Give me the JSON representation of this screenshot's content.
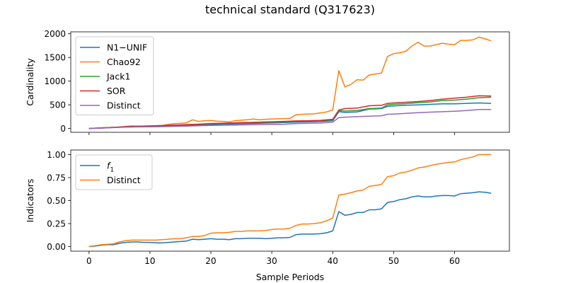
{
  "figure": {
    "title": "technical standard (Q317623)"
  },
  "chart_data": [
    {
      "type": "line",
      "ylabel": "Cardinality",
      "xlabel": "",
      "xlim": [
        -3,
        69
      ],
      "ylim": [
        -80,
        2040
      ],
      "xticks": [
        0,
        10,
        20,
        30,
        40,
        50,
        60
      ],
      "yticks": [
        0,
        500,
        1000,
        1500,
        2000
      ],
      "legend": "upper-left",
      "series": [
        {
          "name": "N1−UNIF",
          "color": "#1f77b4",
          "x": [
            0,
            2,
            4,
            6,
            8,
            10,
            12,
            14,
            16,
            18,
            20,
            22,
            24,
            26,
            28,
            30,
            32,
            34,
            36,
            38,
            40,
            41,
            42,
            44,
            46,
            48,
            49,
            50,
            52,
            54,
            56,
            58,
            60,
            62,
            64,
            66
          ],
          "y": [
            0,
            10,
            22,
            35,
            42,
            48,
            52,
            60,
            68,
            76,
            85,
            92,
            98,
            105,
            110,
            118,
            125,
            135,
            140,
            148,
            165,
            355,
            340,
            350,
            410,
            420,
            470,
            475,
            490,
            500,
            510,
            520,
            520,
            530,
            540,
            530
          ]
        },
        {
          "name": "Chao92",
          "color": "#ff7f0e",
          "x": [
            0,
            1,
            2,
            3,
            4,
            5,
            6,
            7,
            8,
            9,
            10,
            11,
            12,
            13,
            14,
            15,
            16,
            17,
            18,
            19,
            20,
            21,
            22,
            23,
            24,
            25,
            26,
            27,
            28,
            29,
            30,
            31,
            32,
            33,
            34,
            35,
            36,
            37,
            38,
            39,
            40,
            41,
            42,
            43,
            44,
            45,
            46,
            47,
            48,
            49,
            50,
            51,
            52,
            53,
            54,
            55,
            56,
            57,
            58,
            59,
            60,
            61,
            62,
            63,
            64,
            65,
            66
          ],
          "y": [
            0,
            5,
            15,
            20,
            25,
            30,
            45,
            55,
            50,
            50,
            55,
            60,
            65,
            85,
            105,
            110,
            120,
            185,
            150,
            165,
            170,
            155,
            150,
            140,
            165,
            175,
            185,
            200,
            185,
            195,
            200,
            205,
            210,
            215,
            290,
            300,
            305,
            310,
            330,
            350,
            390,
            1220,
            880,
            930,
            1030,
            1020,
            1130,
            1150,
            1170,
            1520,
            1580,
            1600,
            1630,
            1740,
            1820,
            1740,
            1740,
            1770,
            1800,
            1780,
            1770,
            1860,
            1860,
            1870,
            1930,
            1890,
            1850
          ]
        },
        {
          "name": "Jack1",
          "color": "#2ca02c",
          "x": [
            0,
            2,
            4,
            6,
            8,
            10,
            12,
            14,
            16,
            18,
            20,
            22,
            24,
            26,
            28,
            30,
            32,
            34,
            36,
            38,
            40,
            41,
            42,
            44,
            46,
            48,
            49,
            50,
            52,
            54,
            56,
            58,
            60,
            62,
            64,
            66
          ],
          "y": [
            0,
            12,
            25,
            38,
            45,
            52,
            58,
            68,
            78,
            88,
            100,
            108,
            115,
            122,
            128,
            135,
            142,
            152,
            158,
            165,
            185,
            380,
            370,
            380,
            420,
            430,
            500,
            510,
            525,
            545,
            560,
            590,
            600,
            620,
            650,
            660
          ]
        },
        {
          "name": "SOR",
          "color": "#d62728",
          "x": [
            0,
            2,
            4,
            6,
            8,
            10,
            12,
            14,
            16,
            18,
            20,
            22,
            24,
            26,
            28,
            30,
            32,
            34,
            36,
            38,
            40,
            41,
            42,
            44,
            46,
            48,
            49,
            50,
            52,
            54,
            56,
            58,
            60,
            62,
            64,
            66
          ],
          "y": [
            0,
            12,
            25,
            40,
            48,
            55,
            62,
            72,
            82,
            92,
            105,
            112,
            120,
            128,
            135,
            142,
            150,
            160,
            165,
            172,
            195,
            390,
            420,
            430,
            480,
            490,
            530,
            540,
            555,
            570,
            590,
            620,
            640,
            660,
            690,
            685
          ]
        },
        {
          "name": "Distinct",
          "color": "#9467bd",
          "x": [
            0,
            2,
            4,
            6,
            8,
            10,
            12,
            14,
            16,
            18,
            20,
            22,
            24,
            26,
            28,
            30,
            32,
            34,
            36,
            38,
            40,
            41,
            42,
            44,
            46,
            48,
            49,
            50,
            52,
            54,
            56,
            58,
            60,
            62,
            64,
            66
          ],
          "y": [
            0,
            8,
            18,
            28,
            33,
            37,
            40,
            45,
            52,
            58,
            65,
            70,
            73,
            78,
            82,
            85,
            90,
            105,
            110,
            115,
            135,
            230,
            240,
            250,
            260,
            270,
            300,
            305,
            320,
            335,
            345,
            355,
            365,
            380,
            400,
            400
          ]
        }
      ]
    },
    {
      "type": "line",
      "ylabel": "Indicators",
      "xlabel": "Sample Periods",
      "xlim": [
        -3,
        69
      ],
      "ylim": [
        -0.05,
        1.05
      ],
      "xticks": [
        0,
        10,
        20,
        30,
        40,
        50,
        60
      ],
      "yticks": [
        0.0,
        0.25,
        0.5,
        0.75,
        1.0
      ],
      "legend": "upper-left",
      "series": [
        {
          "name": "f1",
          "color": "#1f77b4",
          "x": [
            0,
            1,
            2,
            3,
            4,
            5,
            6,
            7,
            8,
            9,
            10,
            11,
            12,
            13,
            14,
            15,
            16,
            17,
            18,
            19,
            20,
            21,
            22,
            23,
            24,
            25,
            26,
            27,
            28,
            29,
            30,
            31,
            32,
            33,
            34,
            35,
            36,
            37,
            38,
            39,
            40,
            41,
            42,
            43,
            44,
            45,
            46,
            47,
            48,
            49,
            50,
            51,
            52,
            53,
            54,
            55,
            56,
            57,
            58,
            59,
            60,
            61,
            62,
            63,
            64,
            65,
            66
          ],
          "y": [
            0,
            0.005,
            0.015,
            0.02,
            0.02,
            0.035,
            0.045,
            0.05,
            0.05,
            0.045,
            0.045,
            0.04,
            0.04,
            0.045,
            0.05,
            0.055,
            0.06,
            0.08,
            0.075,
            0.08,
            0.085,
            0.08,
            0.08,
            0.075,
            0.085,
            0.085,
            0.09,
            0.09,
            0.09,
            0.085,
            0.09,
            0.095,
            0.095,
            0.1,
            0.13,
            0.135,
            0.135,
            0.135,
            0.14,
            0.15,
            0.17,
            0.38,
            0.34,
            0.35,
            0.37,
            0.37,
            0.4,
            0.4,
            0.41,
            0.48,
            0.49,
            0.51,
            0.52,
            0.54,
            0.55,
            0.54,
            0.54,
            0.55,
            0.555,
            0.555,
            0.55,
            0.575,
            0.58,
            0.585,
            0.595,
            0.59,
            0.58
          ]
        },
        {
          "name": "Distinct",
          "color": "#ff7f0e",
          "x": [
            0,
            1,
            2,
            3,
            4,
            5,
            6,
            7,
            8,
            9,
            10,
            11,
            12,
            13,
            14,
            15,
            16,
            17,
            18,
            19,
            20,
            21,
            22,
            23,
            24,
            25,
            26,
            27,
            28,
            29,
            30,
            31,
            32,
            33,
            34,
            35,
            36,
            37,
            38,
            39,
            40,
            41,
            42,
            43,
            44,
            45,
            46,
            47,
            48,
            49,
            50,
            51,
            52,
            53,
            54,
            55,
            56,
            57,
            58,
            59,
            60,
            61,
            62,
            63,
            64,
            65,
            66
          ],
          "y": [
            0,
            0.01,
            0.02,
            0.025,
            0.03,
            0.05,
            0.065,
            0.07,
            0.07,
            0.07,
            0.07,
            0.07,
            0.075,
            0.08,
            0.085,
            0.085,
            0.095,
            0.11,
            0.11,
            0.12,
            0.145,
            0.15,
            0.15,
            0.155,
            0.165,
            0.165,
            0.17,
            0.17,
            0.17,
            0.175,
            0.185,
            0.19,
            0.19,
            0.2,
            0.23,
            0.245,
            0.245,
            0.25,
            0.26,
            0.28,
            0.31,
            0.56,
            0.57,
            0.585,
            0.605,
            0.615,
            0.655,
            0.665,
            0.675,
            0.76,
            0.77,
            0.8,
            0.81,
            0.83,
            0.855,
            0.865,
            0.88,
            0.895,
            0.905,
            0.915,
            0.92,
            0.945,
            0.96,
            0.975,
            1.0,
            1.0,
            1.0
          ]
        }
      ]
    }
  ]
}
